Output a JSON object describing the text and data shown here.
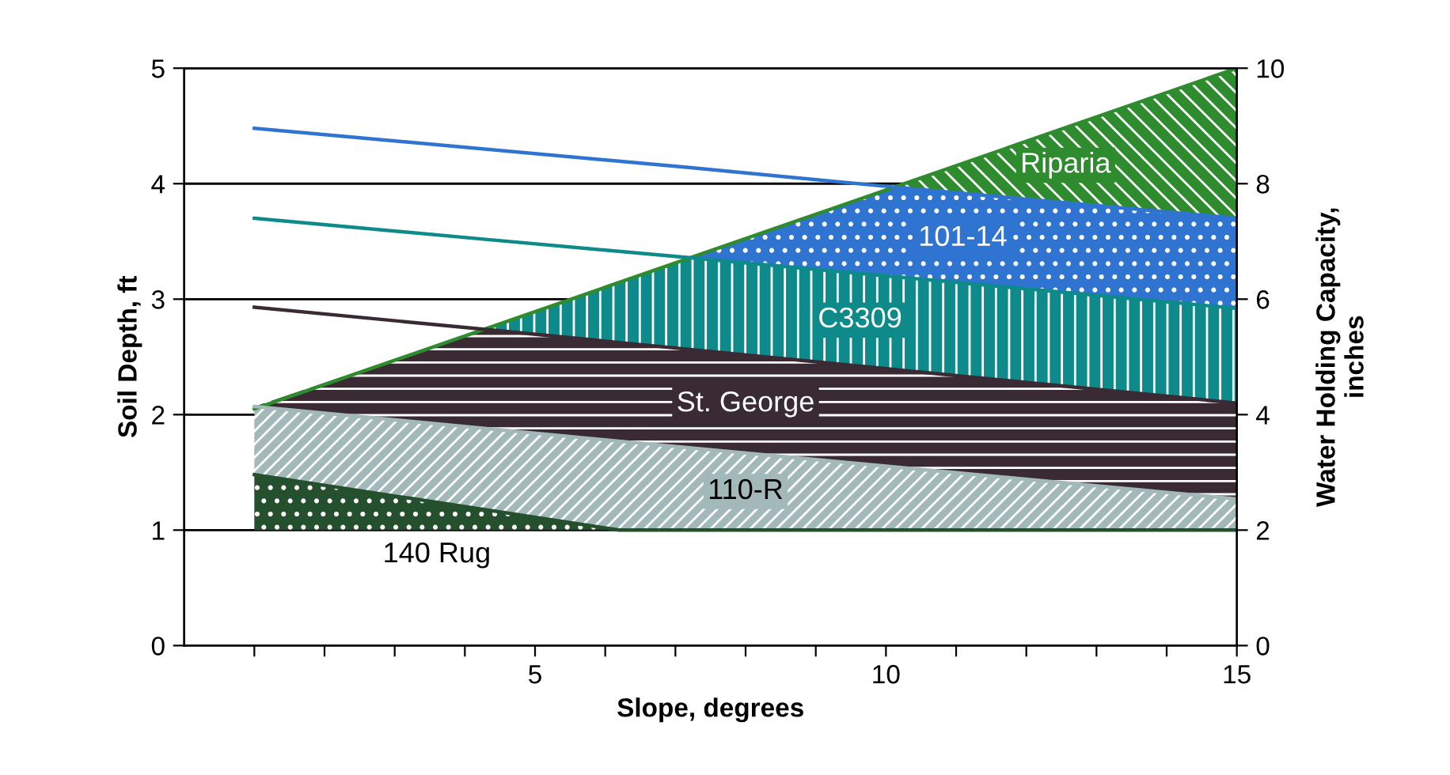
{
  "chart_data": {
    "type": "line",
    "xlabel": "Slope, degrees",
    "ylabel": "Soil Depth, ft",
    "y2label": "Water Holding Capacity,\ninches",
    "series": [
      {
        "name": "Riparia",
        "color": "#2e8b2e",
        "x": [
          1,
          10.12,
          15
        ],
        "values": [
          2.05,
          3.97,
          5.0
        ],
        "lower": [
          2.05,
          3.97,
          3.7
        ],
        "upper": [
          2.05,
          3.97,
          5.0
        ]
      },
      {
        "name": "101-14",
        "color": "#2f74d0",
        "x": [
          1,
          7.19,
          10.12,
          15
        ],
        "values": [
          4.48,
          4.14,
          3.97,
          3.7
        ],
        "lower": [
          3.7,
          3.36,
          3.19,
          2.92
        ],
        "upper": [
          3.7,
          3.36,
          3.97,
          3.7
        ]
      },
      {
        "name": "C3309",
        "color": "#0e8a8a",
        "x": [
          1,
          4.26,
          7.19,
          15
        ],
        "values": [
          3.7,
          3.52,
          3.36,
          2.92
        ],
        "lower": [
          2.93,
          2.74,
          2.56,
          2.1
        ],
        "upper": [
          2.93,
          2.74,
          3.36,
          2.92
        ]
      },
      {
        "name": "St. George",
        "color": "#3a2a33",
        "x": [
          1,
          4.26,
          15
        ],
        "values": [
          2.93,
          2.74,
          2.1
        ],
        "lower": [
          2.07,
          1.88,
          1.27
        ],
        "upper": [
          2.07,
          2.74,
          2.1
        ]
      },
      {
        "name": "110-R",
        "color": "#a3b8b8",
        "x": [
          1,
          6.2,
          15
        ],
        "values": [
          2.07,
          1.77,
          1.27
        ],
        "lower": [
          1.48,
          1.0,
          1.0
        ],
        "upper": [
          2.07,
          1.77,
          1.27
        ]
      },
      {
        "name": "140 Rug",
        "color": "#24502e",
        "x": [
          1,
          6.2,
          15
        ],
        "values": [
          1.48,
          1.0,
          1.0
        ],
        "lower": [
          1.0,
          1.0,
          1.0
        ],
        "upper": [
          1.48,
          1.0,
          1.0
        ]
      }
    ],
    "xlim": [
      0,
      15
    ],
    "xticks": [
      {
        "value": 1,
        "label": null
      },
      {
        "value": 2,
        "label": null
      },
      {
        "value": 3,
        "label": null
      },
      {
        "value": 4,
        "label": null
      },
      5,
      {
        "value": 6,
        "label": null
      },
      {
        "value": 7,
        "label": null
      },
      {
        "value": 8,
        "label": null
      },
      {
        "value": 9,
        "label": null
      },
      10,
      {
        "value": 11,
        "label": null
      },
      {
        "value": 12,
        "label": null
      },
      {
        "value": 13,
        "label": null
      },
      {
        "value": 14,
        "label": null
      },
      15
    ],
    "ylim": [
      0,
      5
    ],
    "yticks": [
      0,
      1,
      2,
      3,
      4,
      5
    ],
    "y2lim": [
      0,
      10
    ],
    "y2ticks": [
      0,
      2,
      4,
      6,
      8,
      10
    ],
    "grid": "y",
    "legend": false
  }
}
